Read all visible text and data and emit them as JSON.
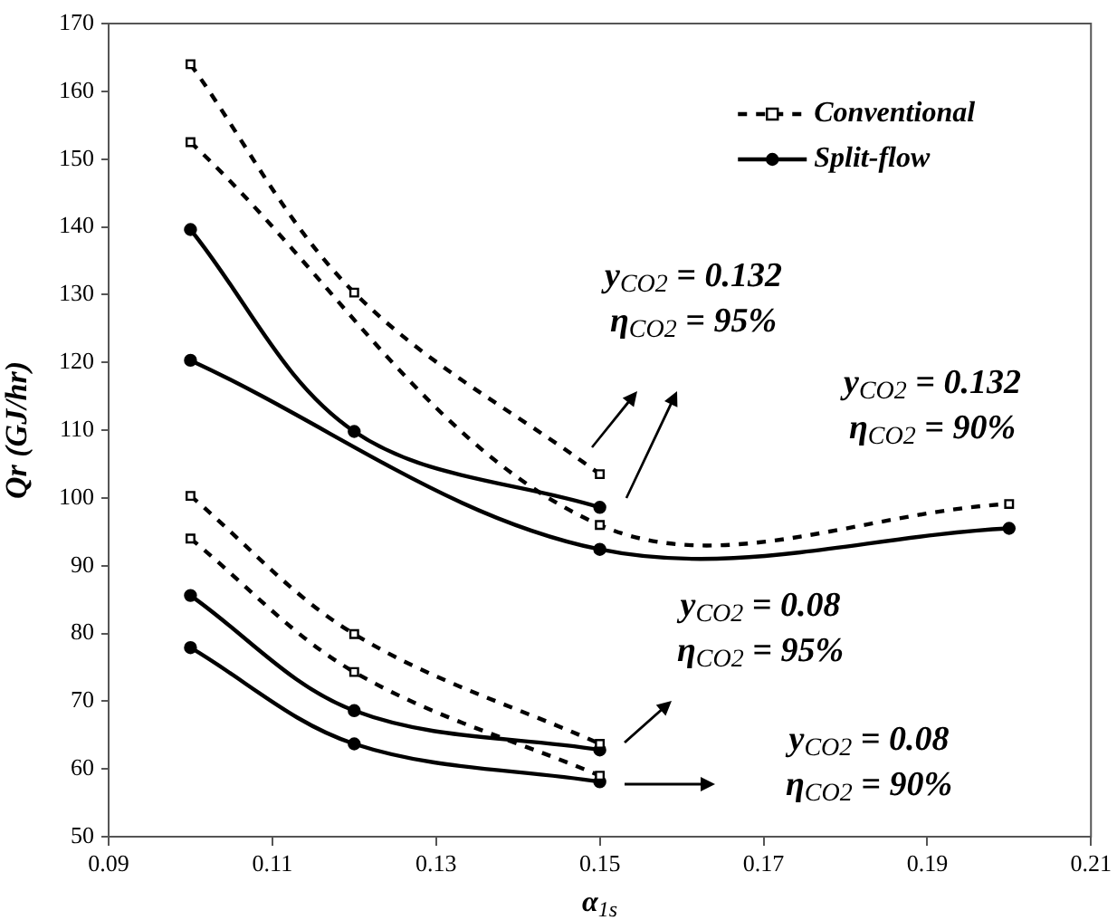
{
  "chart_data": {
    "type": "line",
    "xlabel": "α$_{1s}$",
    "ylabel": "Qr (GJ/hr)",
    "xlim": [
      0.09,
      0.21
    ],
    "xticks": [
      {
        "value": 0.09,
        "label": "0.09"
      },
      {
        "value": 0.11,
        "label": "0.11"
      },
      {
        "value": 0.13,
        "label": "0.13"
      },
      {
        "value": 0.15,
        "label": "0.15"
      },
      {
        "value": 0.17,
        "label": "0.17"
      },
      {
        "value": 0.19,
        "label": "0.19"
      },
      {
        "value": 0.21,
        "label": "0.21"
      }
    ],
    "ylim": [
      50,
      170
    ],
    "yticks": [
      50,
      60,
      70,
      80,
      90,
      100,
      110,
      120,
      130,
      140,
      150,
      160,
      170
    ],
    "grid": false,
    "legend": "top right",
    "series": [
      {
        "name": "Conventional",
        "color": "#000000",
        "marker": "square",
        "line_style": "dashed",
        "x": [
          0.1,
          0.12,
          0.15
        ],
        "values": [
          164,
          130.3,
          103.5
        ]
      },
      {
        "color": "#000000",
        "marker": "square",
        "line_style": "dashed",
        "x": [
          0.1,
          0.15,
          0.2
        ],
        "values": [
          152.5,
          96,
          99.1
        ]
      },
      {
        "color": "#000000",
        "marker": "square",
        "line_style": "dashed",
        "x": [
          0.1,
          0.12,
          0.15
        ],
        "values": [
          100.3,
          79.9,
          63.7
        ]
      },
      {
        "color": "#000000",
        "marker": "square",
        "line_style": "dashed",
        "x": [
          0.1,
          0.12,
          0.15
        ],
        "values": [
          94,
          74.3,
          59
        ]
      },
      {
        "name": "Split-flow",
        "color": "#000000",
        "marker": "circle",
        "line_style": "solid",
        "x": [
          0.1,
          0.12,
          0.15
        ],
        "values": [
          139.6,
          109.8,
          98.6
        ]
      },
      {
        "color": "#000000",
        "marker": "circle",
        "line_style": "solid",
        "x": [
          0.1,
          0.15,
          0.2
        ],
        "values": [
          120.3,
          92.4,
          95.5
        ]
      },
      {
        "color": "#000000",
        "marker": "circle",
        "line_style": "solid",
        "x": [
          0.1,
          0.12,
          0.15
        ],
        "values": [
          85.6,
          68.6,
          62.8
        ]
      },
      {
        "color": "#000000",
        "marker": "circle",
        "line_style": "solid",
        "x": [
          0.1,
          0.12,
          0.15
        ],
        "values": [
          77.9,
          63.7,
          58.1
        ]
      }
    ],
    "annotations": [
      "y$_{CO2}$ = 0.132\nη$_{CO2}$ = 95%",
      "y$_{CO2}$ = 0.132\nη$_{CO2}$ = 90%",
      "y$_{CO2}$ = 0.08\nη$_{CO2}$ = 95%",
      "y$_{CO2}$ = 0.08\nη$_{CO2}$ = 90%"
    ]
  }
}
